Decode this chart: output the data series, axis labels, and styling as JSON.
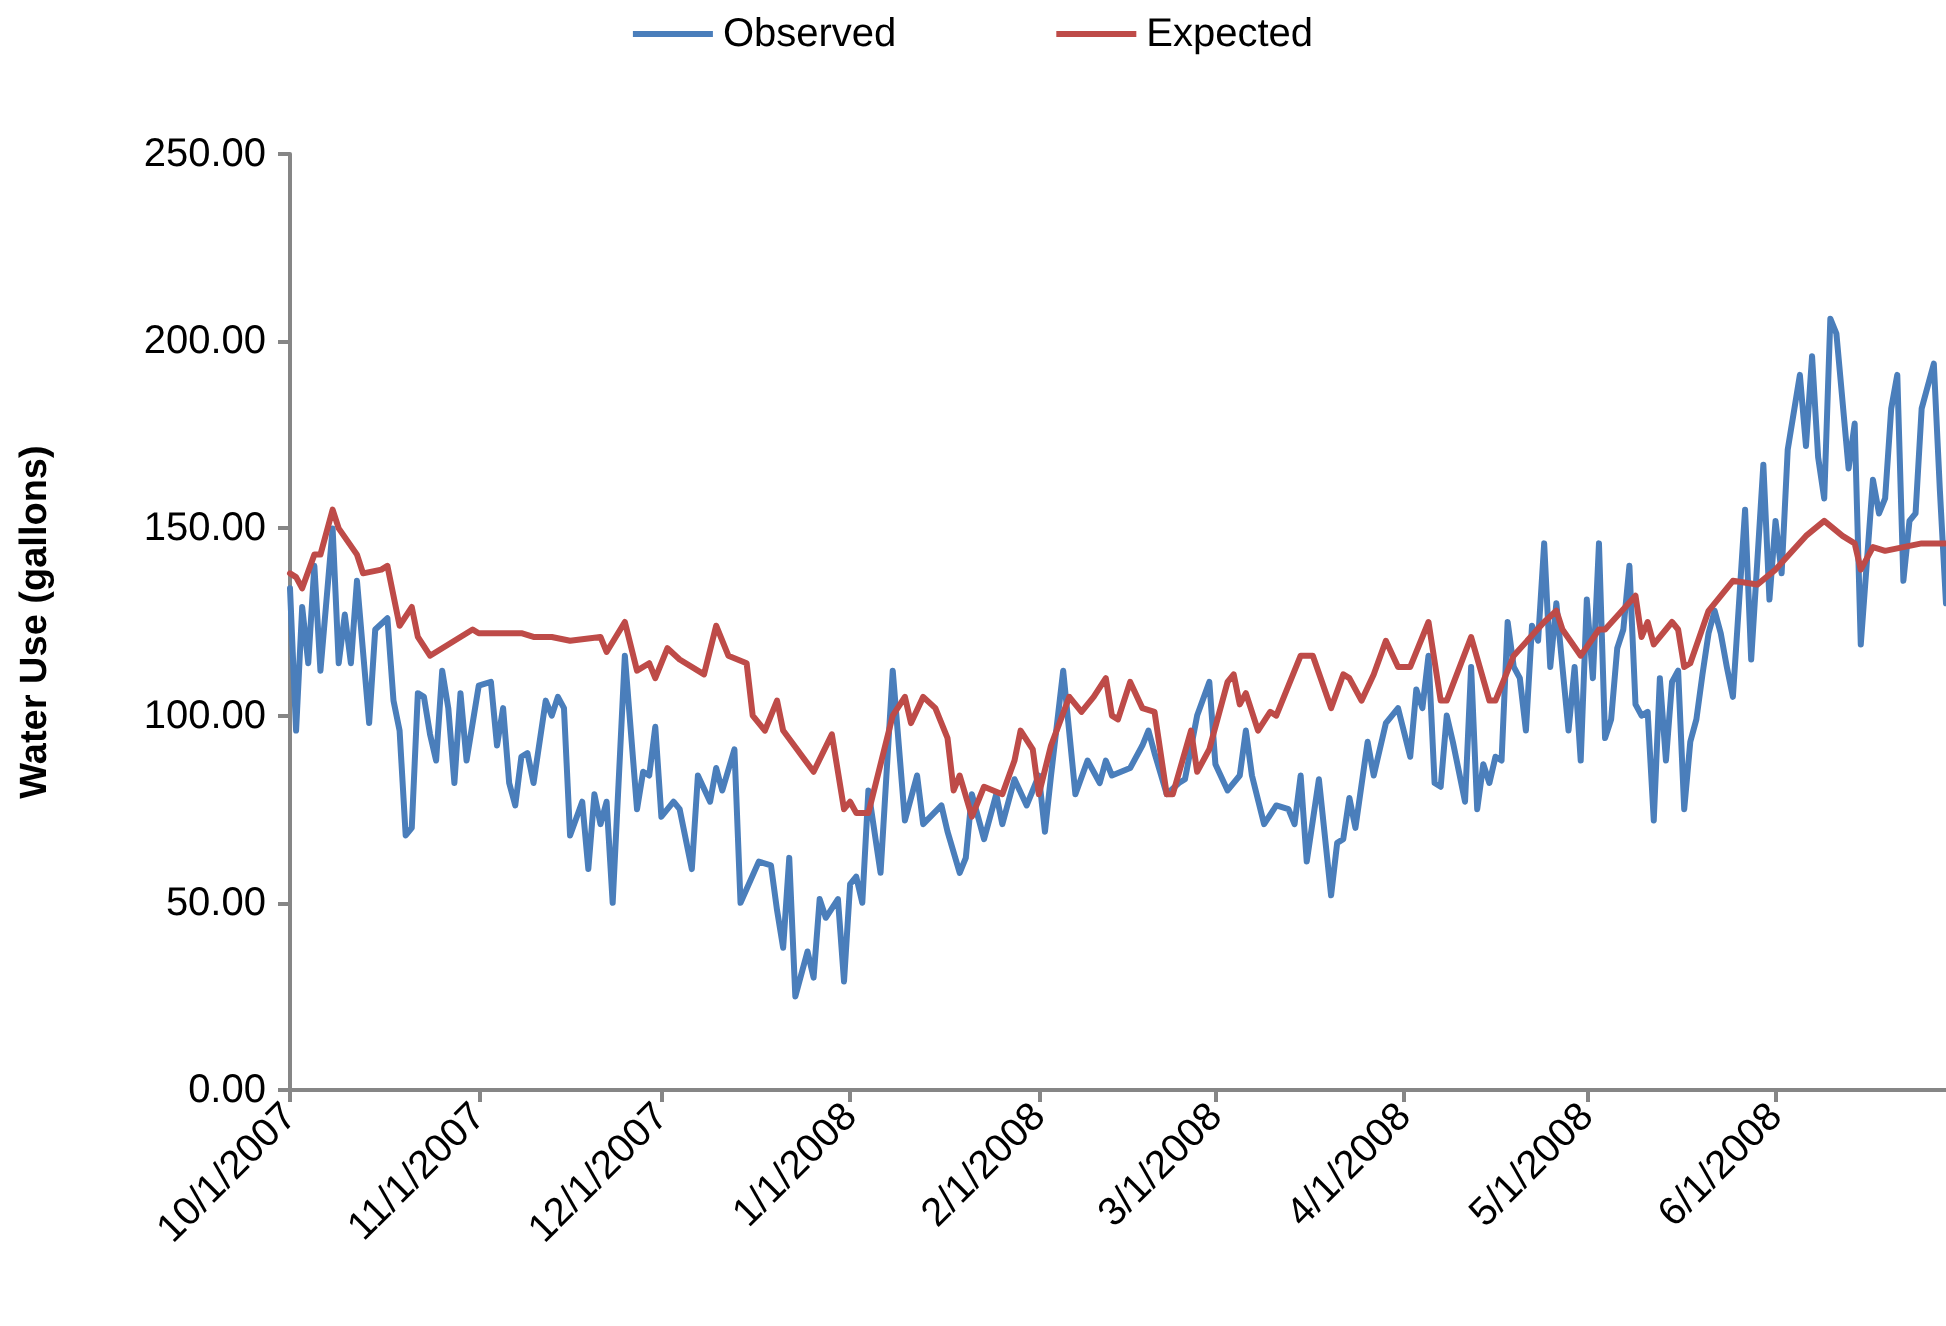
{
  "chart_data": {
    "type": "line",
    "ylabel": "Water Use (gallons)",
    "xlim": [
      "2007-10-01",
      "2008-06-29"
    ],
    "xticks": [
      {
        "value": "2007-10-01",
        "label": "10/1/2007"
      },
      {
        "value": "2007-11-01",
        "label": "11/1/2007"
      },
      {
        "value": "2007-12-01",
        "label": "12/1/2007"
      },
      {
        "value": "2008-01-01",
        "label": "1/1/2008"
      },
      {
        "value": "2008-02-01",
        "label": "2/1/2008"
      },
      {
        "value": "2008-03-01",
        "label": "3/1/2008"
      },
      {
        "value": "2008-04-01",
        "label": "4/1/2008"
      },
      {
        "value": "2008-05-01",
        "label": "5/1/2008"
      },
      {
        "value": "2008-06-01",
        "label": "6/1/2008"
      }
    ],
    "ylim": [
      0,
      250
    ],
    "yticks": [
      {
        "value": 0,
        "label": "0.00"
      },
      {
        "value": 50,
        "label": "50.00"
      },
      {
        "value": 100,
        "label": "100.00"
      },
      {
        "value": 150,
        "label": "150.00"
      },
      {
        "value": 200,
        "label": "200.00"
      },
      {
        "value": 250,
        "label": "250.00"
      }
    ],
    "grid": false,
    "legend": "top",
    "marker": "none",
    "line_style": "solid",
    "series": [
      {
        "name": "Observed",
        "color": "#4a7ebb",
        "x": [
          "2007-10-01",
          "2007-10-02",
          "2007-10-03",
          "2007-10-04",
          "2007-10-05",
          "2007-10-06",
          "2007-10-08",
          "2007-10-09",
          "2007-10-10",
          "2007-10-11",
          "2007-10-12",
          "2007-10-14",
          "2007-10-15",
          "2007-10-17",
          "2007-10-18",
          "2007-10-19",
          "2007-10-20",
          "2007-10-21",
          "2007-10-22",
          "2007-10-23",
          "2007-10-24",
          "2007-10-25",
          "2007-10-26",
          "2007-10-27",
          "2007-10-28",
          "2007-10-29",
          "2007-10-30",
          "2007-11-01",
          "2007-11-03",
          "2007-11-04",
          "2007-11-05",
          "2007-11-06",
          "2007-11-07",
          "2007-11-08",
          "2007-11-09",
          "2007-11-10",
          "2007-11-12",
          "2007-11-13",
          "2007-11-14",
          "2007-11-15",
          "2007-11-16",
          "2007-11-18",
          "2007-11-19",
          "2007-11-20",
          "2007-11-21",
          "2007-11-22",
          "2007-11-23",
          "2007-11-25",
          "2007-11-27",
          "2007-11-28",
          "2007-11-29",
          "2007-11-30",
          "2007-12-01",
          "2007-12-03",
          "2007-12-04",
          "2007-12-06",
          "2007-12-07",
          "2007-12-09",
          "2007-12-10",
          "2007-12-11",
          "2007-12-13",
          "2007-12-14",
          "2007-12-17",
          "2007-12-19",
          "2007-12-20",
          "2007-12-21",
          "2007-12-22",
          "2007-12-23",
          "2007-12-25",
          "2007-12-26",
          "2007-12-27",
          "2007-12-28",
          "2007-12-30",
          "2007-12-31",
          "2008-01-01",
          "2008-01-02",
          "2008-01-03",
          "2008-01-04",
          "2008-01-06",
          "2008-01-08",
          "2008-01-10",
          "2008-01-12",
          "2008-01-13",
          "2008-01-16",
          "2008-01-17",
          "2008-01-19",
          "2008-01-20",
          "2008-01-21",
          "2008-01-23",
          "2008-01-25",
          "2008-01-26",
          "2008-01-28",
          "2008-01-30",
          "2008-02-01",
          "2008-02-02",
          "2008-02-03",
          "2008-02-05",
          "2008-02-07",
          "2008-02-09",
          "2008-02-11",
          "2008-02-12",
          "2008-02-13",
          "2008-02-16",
          "2008-02-18",
          "2008-02-19",
          "2008-02-20",
          "2008-02-22",
          "2008-02-24",
          "2008-02-25",
          "2008-02-27",
          "2008-02-29",
          "2008-03-01",
          "2008-03-03",
          "2008-03-05",
          "2008-03-06",
          "2008-03-07",
          "2008-03-09",
          "2008-03-11",
          "2008-03-13",
          "2008-03-14",
          "2008-03-15",
          "2008-03-16",
          "2008-03-18",
          "2008-03-20",
          "2008-03-21",
          "2008-03-22",
          "2008-03-23",
          "2008-03-24",
          "2008-03-26",
          "2008-03-27",
          "2008-03-29",
          "2008-03-31",
          "2008-04-02",
          "2008-04-03",
          "2008-04-04",
          "2008-04-05",
          "2008-04-06",
          "2008-04-07",
          "2008-04-08",
          "2008-04-09",
          "2008-04-11",
          "2008-04-12",
          "2008-04-13",
          "2008-04-14",
          "2008-04-15",
          "2008-04-16",
          "2008-04-17",
          "2008-04-18",
          "2008-04-19",
          "2008-04-20",
          "2008-04-21",
          "2008-04-22",
          "2008-04-23",
          "2008-04-24",
          "2008-04-25",
          "2008-04-26",
          "2008-04-27",
          "2008-04-28",
          "2008-04-29",
          "2008-04-30",
          "2008-05-01",
          "2008-05-02",
          "2008-05-03",
          "2008-05-04",
          "2008-05-05",
          "2008-05-06",
          "2008-05-07",
          "2008-05-08",
          "2008-05-09",
          "2008-05-10",
          "2008-05-11",
          "2008-05-12",
          "2008-05-13",
          "2008-05-14",
          "2008-05-15",
          "2008-05-16",
          "2008-05-17",
          "2008-05-18",
          "2008-05-19",
          "2008-05-20",
          "2008-05-21",
          "2008-05-22",
          "2008-05-23",
          "2008-05-24",
          "2008-05-25",
          "2008-05-27",
          "2008-05-28",
          "2008-05-30",
          "2008-05-31",
          "2008-06-01",
          "2008-06-02",
          "2008-06-03",
          "2008-06-05",
          "2008-06-06",
          "2008-06-07",
          "2008-06-08",
          "2008-06-09",
          "2008-06-10",
          "2008-06-11",
          "2008-06-13",
          "2008-06-14",
          "2008-06-15",
          "2008-06-17",
          "2008-06-18",
          "2008-06-19",
          "2008-06-20",
          "2008-06-21",
          "2008-06-22",
          "2008-06-23",
          "2008-06-24",
          "2008-06-25",
          "2008-06-27",
          "2008-06-28",
          "2008-06-29"
        ],
        "values": [
          134,
          96,
          129,
          114,
          140,
          112,
          150,
          114,
          127,
          114,
          136,
          98,
          123,
          126,
          104,
          96,
          68,
          70,
          106,
          105,
          95,
          88,
          112,
          102,
          82,
          106,
          88,
          108,
          109,
          92,
          102,
          82,
          76,
          89,
          90,
          82,
          104,
          100,
          105,
          102,
          68,
          77,
          59,
          79,
          71,
          77,
          50,
          116,
          75,
          85,
          84,
          97,
          73,
          77,
          75,
          59,
          84,
          77,
          86,
          80,
          91,
          50,
          61,
          60,
          48,
          38,
          62,
          25,
          37,
          30,
          51,
          46,
          51,
          29,
          55,
          57,
          50,
          80,
          58,
          112,
          72,
          84,
          71,
          76,
          69,
          58,
          62,
          79,
          67,
          79,
          71,
          83,
          76,
          84,
          69,
          84,
          112,
          79,
          88,
          82,
          88,
          84,
          86,
          92,
          96,
          90,
          79,
          82,
          83,
          100,
          109,
          87,
          80,
          84,
          96,
          84,
          71,
          76,
          75,
          71,
          84,
          61,
          83,
          52,
          66,
          67,
          78,
          70,
          93,
          84,
          98,
          102,
          89,
          107,
          102,
          116,
          82,
          81,
          100,
          93,
          77,
          113,
          75,
          87,
          82,
          89,
          88,
          125,
          113,
          110,
          96,
          124,
          120,
          146,
          113,
          130,
          113,
          96,
          113,
          88,
          131,
          110,
          146,
          94,
          99,
          118,
          123,
          140,
          103,
          100,
          101,
          72,
          110,
          88,
          109,
          112,
          75,
          93,
          99,
          111,
          122,
          128,
          122,
          113,
          105,
          155,
          115,
          167,
          131,
          152,
          138,
          171,
          191,
          172,
          196,
          169,
          158,
          206,
          202,
          166,
          178,
          119,
          163,
          154,
          158,
          182,
          191,
          136,
          152,
          154,
          182,
          194,
          160,
          130
        ]
      },
      {
        "name": "Expected",
        "color": "#be4b48",
        "x": [
          "2007-10-01",
          "2007-10-02",
          "2007-10-03",
          "2007-10-05",
          "2007-10-06",
          "2007-10-08",
          "2007-10-09",
          "2007-10-12",
          "2007-10-13",
          "2007-10-16",
          "2007-10-17",
          "2007-10-19",
          "2007-10-21",
          "2007-10-22",
          "2007-10-24",
          "2007-10-28",
          "2007-10-31",
          "2007-11-01",
          "2007-11-08",
          "2007-11-10",
          "2007-11-13",
          "2007-11-16",
          "2007-11-21",
          "2007-11-22",
          "2007-11-25",
          "2007-11-27",
          "2007-11-29",
          "2007-11-30",
          "2007-12-02",
          "2007-12-04",
          "2007-12-08",
          "2007-12-10",
          "2007-12-12",
          "2007-12-15",
          "2007-12-16",
          "2007-12-18",
          "2007-12-20",
          "2007-12-21",
          "2007-12-26",
          "2007-12-29",
          "2007-12-31",
          "2008-01-01",
          "2008-01-02",
          "2008-01-04",
          "2008-01-08",
          "2008-01-10",
          "2008-01-11",
          "2008-01-13",
          "2008-01-15",
          "2008-01-17",
          "2008-01-18",
          "2008-01-19",
          "2008-01-21",
          "2008-01-23",
          "2008-01-26",
          "2008-01-28",
          "2008-01-29",
          "2008-01-31",
          "2008-02-01",
          "2008-02-03",
          "2008-02-06",
          "2008-02-08",
          "2008-02-10",
          "2008-02-12",
          "2008-02-13",
          "2008-02-14",
          "2008-02-16",
          "2008-02-18",
          "2008-02-20",
          "2008-02-22",
          "2008-02-23",
          "2008-02-26",
          "2008-02-27",
          "2008-02-29",
          "2008-03-03",
          "2008-03-04",
          "2008-03-05",
          "2008-03-06",
          "2008-03-08",
          "2008-03-10",
          "2008-03-11",
          "2008-03-15",
          "2008-03-17",
          "2008-03-20",
          "2008-03-22",
          "2008-03-23",
          "2008-03-25",
          "2008-03-27",
          "2008-03-29",
          "2008-03-31",
          "2008-04-02",
          "2008-04-05",
          "2008-04-07",
          "2008-04-08",
          "2008-04-12",
          "2008-04-15",
          "2008-04-16",
          "2008-04-19",
          "2008-04-24",
          "2008-04-26",
          "2008-04-27",
          "2008-04-30",
          "2008-05-03",
          "2008-05-04",
          "2008-05-09",
          "2008-05-10",
          "2008-05-11",
          "2008-05-12",
          "2008-05-15",
          "2008-05-16",
          "2008-05-17",
          "2008-05-18",
          "2008-05-21",
          "2008-05-22",
          "2008-05-25",
          "2008-05-29",
          "2008-06-01",
          "2008-06-06",
          "2008-06-09",
          "2008-06-12",
          "2008-06-14",
          "2008-06-15",
          "2008-06-17",
          "2008-06-19",
          "2008-06-22",
          "2008-06-25",
          "2008-06-29"
        ],
        "values": [
          138,
          137,
          134,
          143,
          143,
          155,
          150,
          143,
          138,
          139,
          140,
          124,
          129,
          121,
          116,
          120,
          123,
          122,
          122,
          121,
          121,
          120,
          121,
          117,
          125,
          112,
          114,
          110,
          118,
          115,
          111,
          124,
          116,
          114,
          100,
          96,
          104,
          96,
          85,
          95,
          75,
          77,
          74,
          74,
          100,
          105,
          98,
          105,
          102,
          94,
          80,
          84,
          73,
          81,
          79,
          88,
          96,
          91,
          79,
          92,
          105,
          101,
          105,
          110,
          100,
          99,
          109,
          102,
          101,
          79,
          79,
          96,
          85,
          91,
          109,
          111,
          103,
          106,
          96,
          101,
          100,
          116,
          116,
          102,
          111,
          110,
          104,
          111,
          120,
          113,
          113,
          125,
          104,
          104,
          121,
          104,
          104,
          116,
          125,
          128,
          123,
          116,
          123,
          123,
          132,
          121,
          125,
          119,
          125,
          123,
          113,
          114,
          128,
          130,
          136,
          135,
          139,
          148,
          152,
          148,
          146,
          139,
          145,
          144,
          145,
          146,
          146
        ]
      }
    ]
  }
}
